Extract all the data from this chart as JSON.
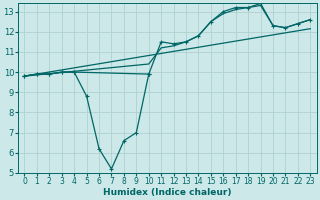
{
  "xlabel": "Humidex (Indice chaleur)",
  "bg_color": "#cce8e8",
  "grid_color": "#b0d0d0",
  "line_color": "#006666",
  "xlim": [
    -0.5,
    23.5
  ],
  "ylim": [
    5,
    13.4
  ],
  "xticks": [
    0,
    1,
    2,
    3,
    4,
    5,
    6,
    7,
    8,
    9,
    10,
    11,
    12,
    13,
    14,
    15,
    16,
    17,
    18,
    19,
    20,
    21,
    22,
    23
  ],
  "yticks": [
    5,
    6,
    7,
    8,
    9,
    10,
    11,
    12,
    13
  ],
  "series": [
    {
      "x": [
        0,
        1,
        2,
        3,
        4,
        5,
        6,
        7,
        8,
        9,
        10
      ],
      "y": [
        9.8,
        9.9,
        9.9,
        10.0,
        10.0,
        8.8,
        6.2,
        5.2,
        6.6,
        7.0,
        9.9
      ],
      "markers": true
    },
    {
      "x": [
        0,
        1,
        2,
        3,
        4,
        10,
        11,
        12,
        13,
        14,
        15,
        16,
        17,
        18,
        19,
        20,
        21,
        22,
        23
      ],
      "y": [
        9.8,
        9.9,
        9.9,
        10.0,
        10.0,
        9.9,
        11.5,
        11.4,
        11.5,
        11.8,
        12.5,
        13.0,
        13.2,
        13.2,
        13.4,
        12.3,
        12.2,
        12.4,
        12.6
      ],
      "markers": true
    },
    {
      "x": [
        0,
        10,
        11,
        12,
        13,
        14,
        15,
        16,
        17,
        18,
        19,
        20,
        21,
        22,
        23
      ],
      "y": [
        9.8,
        10.4,
        11.2,
        11.3,
        11.5,
        11.8,
        12.5,
        12.9,
        13.1,
        13.2,
        13.3,
        12.3,
        12.2,
        12.4,
        12.6
      ],
      "markers": false
    },
    {
      "x": [
        0,
        23
      ],
      "y": [
        9.8,
        12.15
      ],
      "markers": false
    }
  ]
}
